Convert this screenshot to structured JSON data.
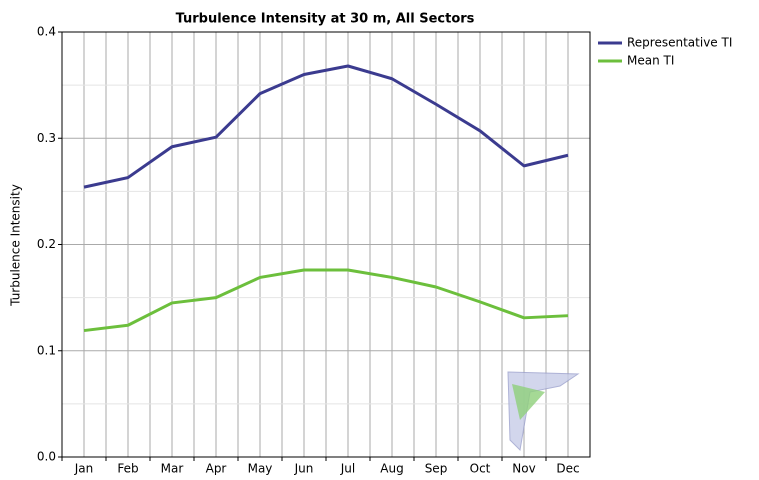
{
  "chart_data": {
    "type": "line",
    "title": "Turbulence Intensity at 30 m, All Sectors",
    "y_label": "Turbulence Intensity",
    "categories": [
      "Jan",
      "Feb",
      "Mar",
      "Apr",
      "May",
      "Jun",
      "Jul",
      "Aug",
      "Sep",
      "Oct",
      "Nov",
      "Dec"
    ],
    "series": [
      {
        "name": "Representative TI",
        "color": "#3b3b8f",
        "values": [
          0.254,
          0.263,
          0.292,
          0.301,
          0.342,
          0.36,
          0.368,
          0.356,
          0.332,
          0.307,
          0.274,
          0.284
        ]
      },
      {
        "name": "Mean TI",
        "color": "#6cbf3c",
        "values": [
          0.119,
          0.124,
          0.145,
          0.15,
          0.169,
          0.176,
          0.176,
          0.169,
          0.16,
          0.146,
          0.131,
          0.133
        ]
      }
    ],
    "ylim": [
      0,
      0.4
    ],
    "yticks": [
      {
        "value": 0,
        "label": "0.0"
      },
      0.1,
      0.2,
      0.3,
      0.4
    ],
    "grid": true,
    "legend": "right"
  }
}
